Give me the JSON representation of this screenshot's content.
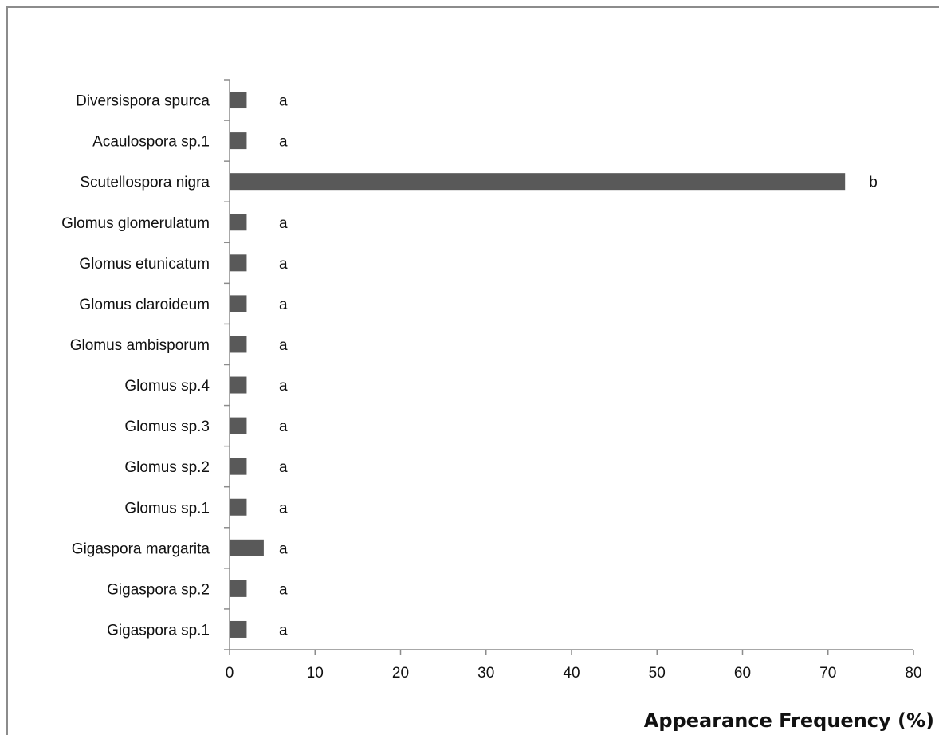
{
  "chart_data": {
    "type": "bar",
    "orientation": "horizontal",
    "categories": [
      "Diversispora spurca",
      "Acaulospora sp.1",
      "Scutellospora nigra",
      "Glomus glomerulatum",
      "Glomus etunicatum",
      "Glomus claroideum",
      "Glomus ambisporum",
      "Glomus sp.4",
      "Glomus sp.3",
      "Glomus sp.2",
      "Glomus sp.1",
      "Gigaspora margarita",
      "Gigaspora sp.2",
      "Gigaspora sp.1"
    ],
    "values": [
      2,
      2,
      72,
      2,
      2,
      2,
      2,
      2,
      2,
      2,
      2,
      4,
      2,
      2
    ],
    "significance": [
      "a",
      "a",
      "b",
      "a",
      "a",
      "a",
      "a",
      "a",
      "a",
      "a",
      "a",
      "a",
      "a",
      "a"
    ],
    "title": "",
    "xlabel": "Appearance Frequency (%)",
    "ylabel": "",
    "xlim": [
      0,
      80
    ],
    "xticks": [
      "0",
      "10",
      "20",
      "30",
      "40",
      "50",
      "60",
      "70",
      "80"
    ],
    "grid": false,
    "legend": "none",
    "bar_color": "#595959",
    "axis_color": "#8c8c8c"
  }
}
